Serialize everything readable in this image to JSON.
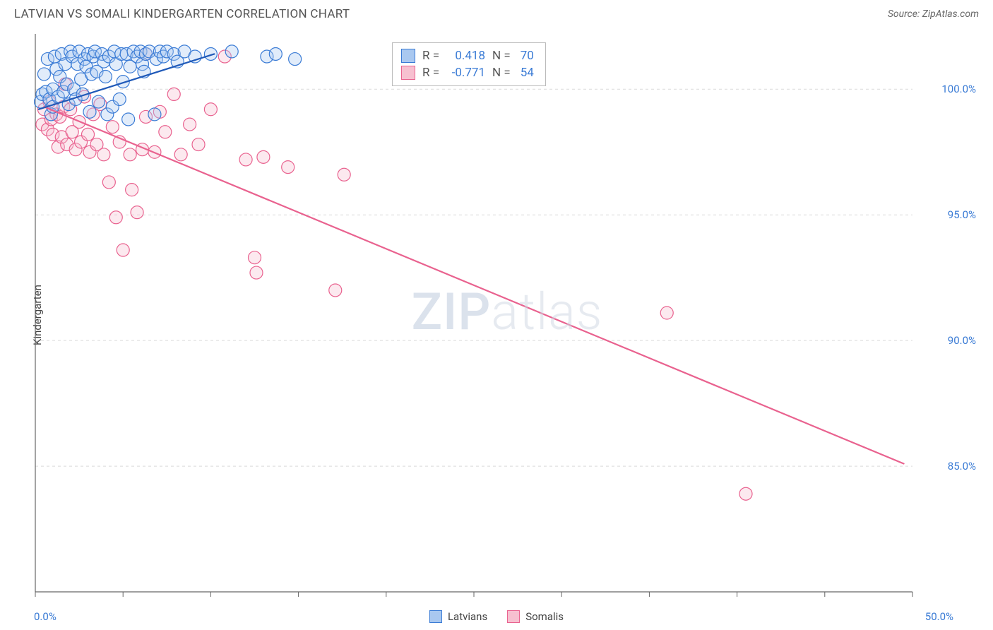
{
  "title": "LATVIAN VS SOMALI KINDERGARTEN CORRELATION CHART",
  "source": "Source: ZipAtlas.com",
  "watermark_head": "ZIP",
  "watermark_tail": "atlas",
  "chart": {
    "type": "scatter",
    "ylabel": "Kindergarten",
    "xlim": [
      0,
      50
    ],
    "ylim": [
      80,
      102.2
    ],
    "xtick_labels": {
      "min": "0.0%",
      "max": "50.0%"
    },
    "xtick_minor_positions": [
      0,
      5,
      10,
      15,
      20,
      25,
      30,
      35,
      40,
      45,
      50
    ],
    "ytick_positions": [
      85,
      90,
      95,
      100
    ],
    "ytick_labels": [
      "85.0%",
      "90.0%",
      "95.0%",
      "100.0%"
    ],
    "grid_color": "#d9d9d9",
    "axis_color": "#666666",
    "background_color": "#ffffff",
    "marker_radius": 9,
    "marker_fill_opacity": 0.35,
    "marker_stroke_width": 1.2,
    "line_width": 2.2,
    "series": [
      {
        "name": "Latvians",
        "color_fill": "#a9c8f0",
        "color_stroke": "#3a7bd5",
        "line_color": "#1f59b8",
        "R": "0.418",
        "N": "70",
        "trend": {
          "x1": 0.2,
          "y1": 99.2,
          "x2": 10.2,
          "y2": 101.4
        },
        "points": [
          [
            0.3,
            99.5
          ],
          [
            0.4,
            99.8
          ],
          [
            0.5,
            100.6
          ],
          [
            0.6,
            99.9
          ],
          [
            0.7,
            101.2
          ],
          [
            0.8,
            99.6
          ],
          [
            0.9,
            99.0
          ],
          [
            1.0,
            100.0
          ],
          [
            1.0,
            99.3
          ],
          [
            1.1,
            101.3
          ],
          [
            1.2,
            100.8
          ],
          [
            1.3,
            99.7
          ],
          [
            1.4,
            100.5
          ],
          [
            1.5,
            101.4
          ],
          [
            1.6,
            99.9
          ],
          [
            1.7,
            101.0
          ],
          [
            1.8,
            100.2
          ],
          [
            1.9,
            99.4
          ],
          [
            2.0,
            101.5
          ],
          [
            2.1,
            101.3
          ],
          [
            2.2,
            100.0
          ],
          [
            2.3,
            99.6
          ],
          [
            2.4,
            101.0
          ],
          [
            2.5,
            101.5
          ],
          [
            2.6,
            100.4
          ],
          [
            2.7,
            99.8
          ],
          [
            2.8,
            101.2
          ],
          [
            2.9,
            100.9
          ],
          [
            3.0,
            101.4
          ],
          [
            3.1,
            99.1
          ],
          [
            3.2,
            100.6
          ],
          [
            3.3,
            101.3
          ],
          [
            3.4,
            101.5
          ],
          [
            3.5,
            100.7
          ],
          [
            3.6,
            99.5
          ],
          [
            3.8,
            101.4
          ],
          [
            3.9,
            101.1
          ],
          [
            4.0,
            100.5
          ],
          [
            4.1,
            99.0
          ],
          [
            4.2,
            101.3
          ],
          [
            4.4,
            99.3
          ],
          [
            4.5,
            101.5
          ],
          [
            4.6,
            101.0
          ],
          [
            4.8,
            99.6
          ],
          [
            4.9,
            101.4
          ],
          [
            5.0,
            100.3
          ],
          [
            5.2,
            101.4
          ],
          [
            5.3,
            98.8
          ],
          [
            5.4,
            100.9
          ],
          [
            5.6,
            101.5
          ],
          [
            5.8,
            101.3
          ],
          [
            6.0,
            101.5
          ],
          [
            6.1,
            101.0
          ],
          [
            6.2,
            100.7
          ],
          [
            6.3,
            101.4
          ],
          [
            6.5,
            101.5
          ],
          [
            6.8,
            99.0
          ],
          [
            6.9,
            101.2
          ],
          [
            7.1,
            101.5
          ],
          [
            7.3,
            101.3
          ],
          [
            7.5,
            101.5
          ],
          [
            7.9,
            101.4
          ],
          [
            8.1,
            101.1
          ],
          [
            8.5,
            101.5
          ],
          [
            9.1,
            101.3
          ],
          [
            10.0,
            101.4
          ],
          [
            11.2,
            101.5
          ],
          [
            13.2,
            101.3
          ],
          [
            13.7,
            101.4
          ],
          [
            14.8,
            101.2
          ]
        ]
      },
      {
        "name": "Somalis",
        "color_fill": "#f7c0d0",
        "color_stroke": "#e9628f",
        "line_color": "#e9628f",
        "R": "-0.771",
        "N": "54",
        "trend": {
          "x1": 0.5,
          "y1": 99.3,
          "x2": 49.5,
          "y2": 85.1
        },
        "points": [
          [
            0.4,
            98.6
          ],
          [
            0.5,
            99.2
          ],
          [
            0.7,
            98.4
          ],
          [
            0.8,
            99.5
          ],
          [
            0.9,
            98.8
          ],
          [
            1.0,
            98.2
          ],
          [
            1.2,
            99.0
          ],
          [
            1.3,
            97.7
          ],
          [
            1.4,
            98.9
          ],
          [
            1.5,
            98.1
          ],
          [
            1.6,
            99.3
          ],
          [
            1.7,
            100.2
          ],
          [
            1.8,
            97.8
          ],
          [
            2.0,
            99.2
          ],
          [
            2.1,
            98.3
          ],
          [
            2.3,
            97.6
          ],
          [
            2.5,
            98.7
          ],
          [
            2.6,
            97.9
          ],
          [
            2.8,
            99.7
          ],
          [
            3.0,
            98.2
          ],
          [
            3.1,
            97.5
          ],
          [
            3.3,
            99.0
          ],
          [
            3.5,
            97.8
          ],
          [
            3.7,
            99.4
          ],
          [
            3.9,
            97.4
          ],
          [
            4.2,
            96.3
          ],
          [
            4.4,
            98.5
          ],
          [
            4.6,
            94.9
          ],
          [
            4.8,
            97.9
          ],
          [
            5.0,
            93.6
          ],
          [
            5.4,
            97.4
          ],
          [
            5.5,
            96.0
          ],
          [
            5.8,
            95.1
          ],
          [
            6.1,
            97.6
          ],
          [
            6.3,
            101.4
          ],
          [
            6.3,
            98.9
          ],
          [
            6.8,
            97.5
          ],
          [
            7.1,
            99.1
          ],
          [
            7.4,
            98.3
          ],
          [
            7.9,
            99.8
          ],
          [
            8.3,
            97.4
          ],
          [
            8.8,
            98.6
          ],
          [
            9.3,
            97.8
          ],
          [
            10.0,
            99.2
          ],
          [
            10.8,
            101.3
          ],
          [
            12.0,
            97.2
          ],
          [
            12.5,
            93.3
          ],
          [
            12.6,
            92.7
          ],
          [
            13.0,
            97.3
          ],
          [
            14.4,
            96.9
          ],
          [
            17.1,
            92.0
          ],
          [
            17.6,
            96.6
          ],
          [
            36.0,
            91.1
          ],
          [
            40.5,
            83.9
          ]
        ]
      }
    ],
    "legend": {
      "bottom_label_1": "Latvians",
      "bottom_label_2": "Somalis"
    }
  },
  "stats_headers": {
    "R": "R =",
    "N": "N ="
  }
}
